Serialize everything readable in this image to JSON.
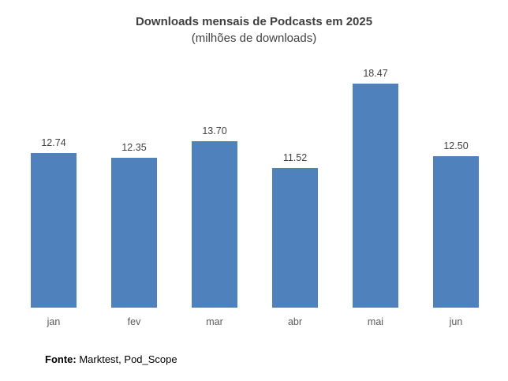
{
  "chart_data": {
    "type": "bar",
    "title": "Downloads mensais de Podcasts em 2025",
    "subtitle": "(milhões de downloads)",
    "categories": [
      "jan",
      "fev",
      "mar",
      "abr",
      "mai",
      "jun"
    ],
    "values": [
      12.74,
      12.35,
      13.7,
      11.52,
      18.47,
      12.5
    ],
    "value_labels": [
      "12.74",
      "12.35",
      "13.70",
      "11.52",
      "18.47",
      "12.50"
    ],
    "xlabel": "",
    "ylabel": "",
    "ylim": [
      0,
      20
    ],
    "grid": false,
    "legend": "none",
    "axes_visible": false,
    "data_labels": "above-bars",
    "colors": {
      "bar": "#4F81BD",
      "title_text": "#404040",
      "value_label_text": "#404040",
      "category_label_text": "#595959",
      "footer_text": "#000000",
      "background": "#ffffff"
    }
  },
  "footer": {
    "label_bold": "Fonte:",
    "text": " Marktest, Pod_Scope"
  }
}
